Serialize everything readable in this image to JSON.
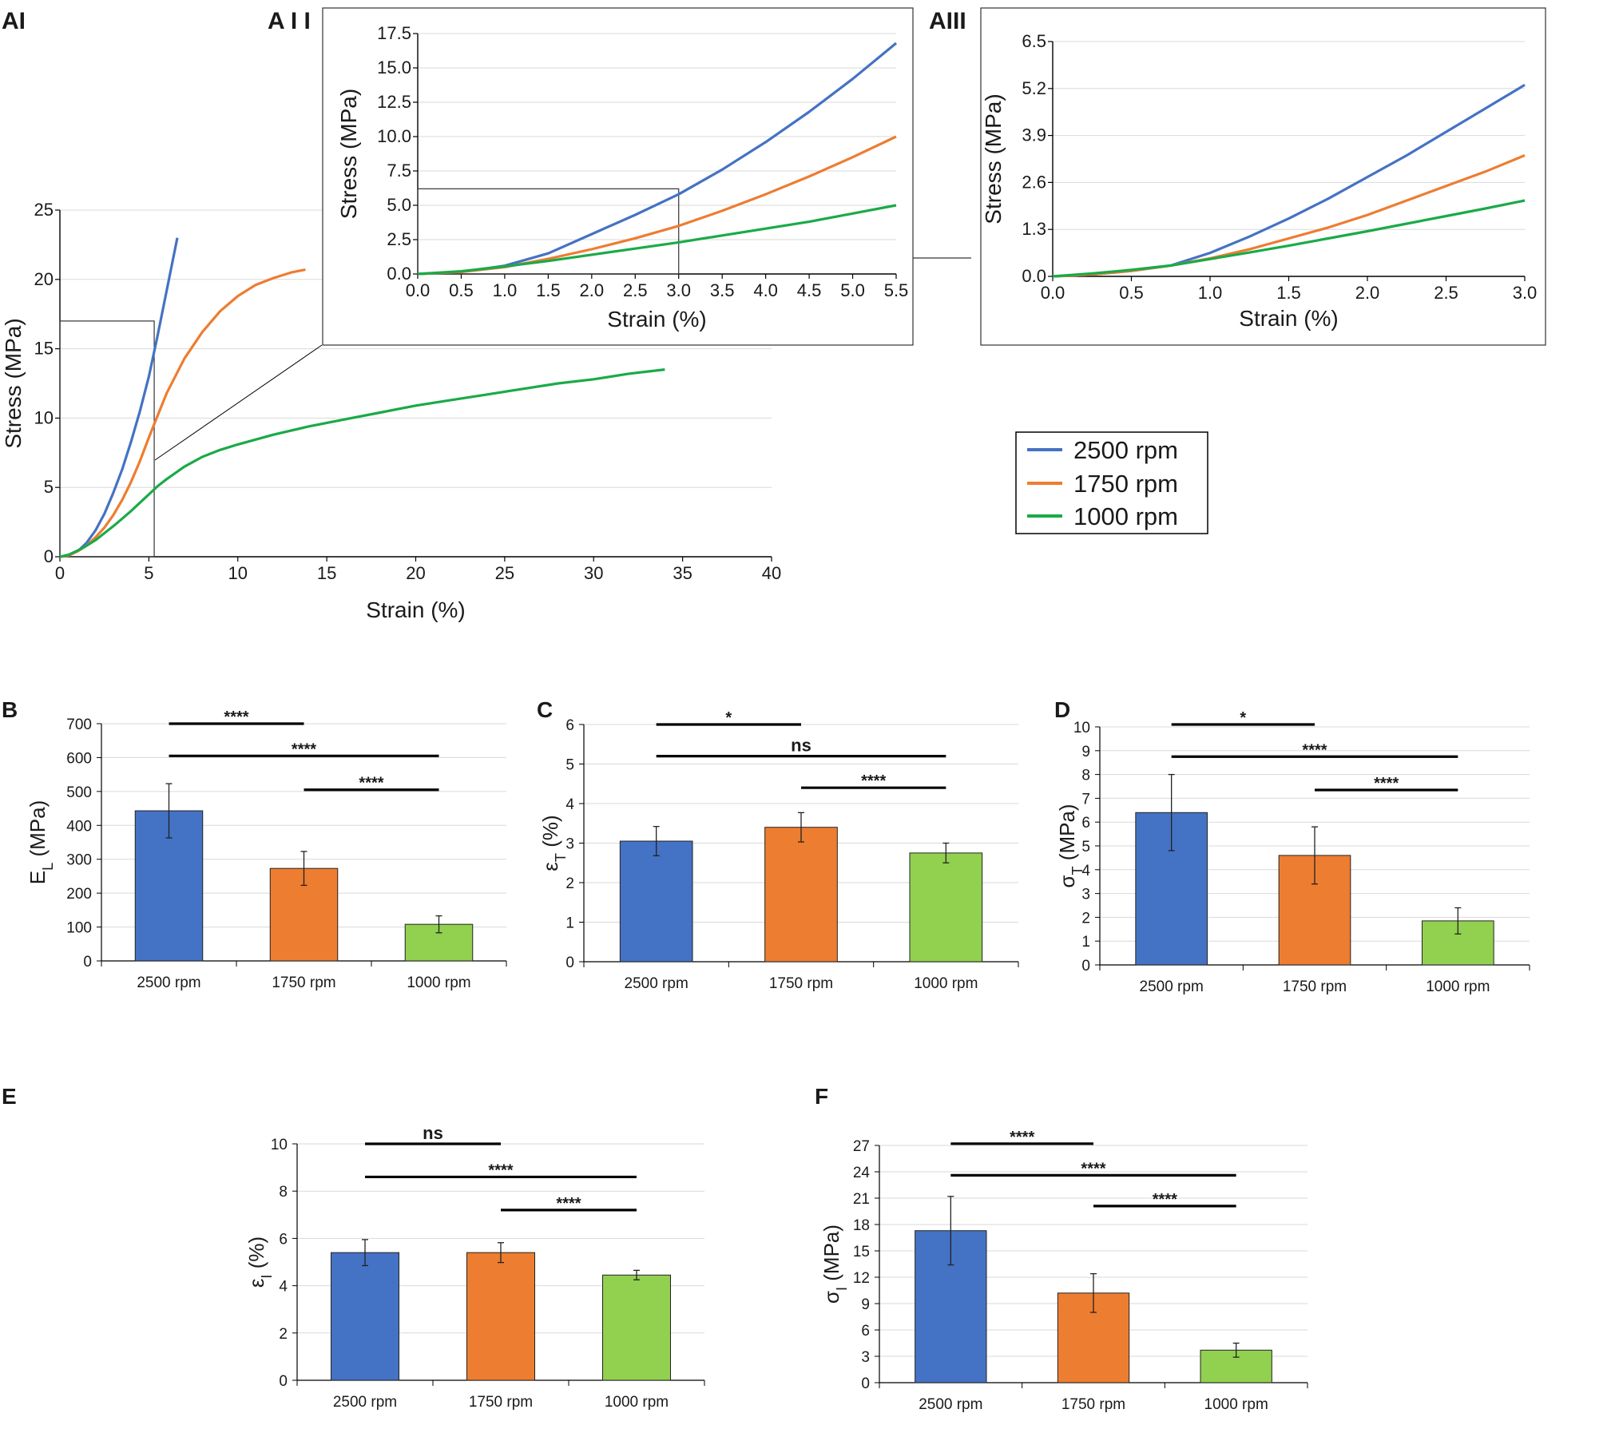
{
  "figure": {
    "panel_labels": {
      "AI": "AI",
      "AII": "A I I",
      "AIII": "AIII",
      "B": "B",
      "C": "C",
      "D": "D",
      "E": "E",
      "F": "F"
    }
  },
  "colors": {
    "blue": "#4472c4",
    "orange": "#ed7d31",
    "green_line": "#1aaa48",
    "green_bar": "#92d050",
    "axis": "#000000",
    "grid": "#d9d9d9"
  },
  "chart_data": [
    {
      "id": "AI",
      "type": "line",
      "xlabel": "Strain (%)",
      "ylabel": "Stress (MPa)",
      "xlim": [
        0,
        40
      ],
      "ylim": [
        0,
        25
      ],
      "xticks": [
        0,
        5,
        10,
        15,
        20,
        25,
        30,
        35,
        40
      ],
      "yticks": [
        0,
        5,
        10,
        15,
        20,
        25
      ],
      "inset_box": {
        "x": [
          0,
          5.3
        ],
        "y": [
          0,
          17
        ]
      },
      "series": [
        {
          "name": "2500 rpm",
          "color": "#4472c4",
          "x": [
            0,
            0.5,
            1,
            1.5,
            2,
            2.5,
            3,
            3.5,
            4,
            4.5,
            5,
            5.5,
            6,
            6.6
          ],
          "y": [
            0,
            0.1,
            0.4,
            1.0,
            1.9,
            3.1,
            4.6,
            6.3,
            8.3,
            10.5,
            13,
            16,
            19.2,
            23
          ]
        },
        {
          "name": "1750 rpm",
          "color": "#ed7d31",
          "x": [
            0,
            0.5,
            1,
            1.5,
            2,
            2.5,
            3,
            3.5,
            4,
            4.5,
            5,
            5.5,
            6,
            7,
            8,
            9,
            10,
            11,
            12,
            13,
            13.8
          ],
          "y": [
            0,
            0.1,
            0.4,
            0.8,
            1.4,
            2.1,
            3.0,
            4.1,
            5.4,
            6.9,
            8.6,
            10.2,
            11.8,
            14.3,
            16.2,
            17.7,
            18.8,
            19.6,
            20.1,
            20.5,
            20.7
          ]
        },
        {
          "name": "1000 rpm",
          "color": "#1aaa48",
          "x": [
            0,
            0.5,
            1,
            1.5,
            2,
            2.5,
            3,
            3.5,
            4,
            4.5,
            5,
            5.5,
            6,
            7,
            8,
            9,
            10,
            12,
            14,
            16,
            18,
            20,
            22,
            24,
            26,
            28,
            30,
            32,
            34
          ],
          "y": [
            0,
            0.15,
            0.45,
            0.8,
            1.2,
            1.7,
            2.2,
            2.75,
            3.3,
            3.9,
            4.5,
            5.1,
            5.6,
            6.5,
            7.2,
            7.7,
            8.1,
            8.8,
            9.4,
            9.9,
            10.4,
            10.9,
            11.3,
            11.7,
            12.1,
            12.5,
            12.8,
            13.2,
            13.5
          ]
        }
      ]
    },
    {
      "id": "AII",
      "type": "line",
      "xlabel": "Strain (%)",
      "ylabel": "Stress (MPa)",
      "xlim": [
        0,
        5.5
      ],
      "ylim": [
        0,
        17.5
      ],
      "xticks": [
        "0.0",
        "0.5",
        "1.0",
        "1.5",
        "2.0",
        "2.5",
        "3.0",
        "3.5",
        "4.0",
        "4.5",
        "5.0",
        "5.5"
      ],
      "yticks": [
        "0.0",
        "2.5",
        "5.0",
        "7.5",
        "10.0",
        "12.5",
        "15.0",
        "17.5"
      ],
      "inset_box": {
        "x": [
          0,
          3.0
        ],
        "y": [
          0,
          6.2
        ]
      },
      "series": [
        {
          "name": "2500 rpm",
          "color": "#4472c4",
          "x": [
            0,
            0.5,
            1,
            1.5,
            2,
            2.5,
            3,
            3.5,
            4,
            4.5,
            5,
            5.5
          ],
          "y": [
            0,
            0.15,
            0.6,
            1.5,
            2.9,
            4.3,
            5.8,
            7.6,
            9.6,
            11.8,
            14.2,
            16.8
          ]
        },
        {
          "name": "1750 rpm",
          "color": "#ed7d31",
          "x": [
            0,
            0.5,
            1,
            1.5,
            2,
            2.5,
            3,
            3.5,
            4,
            4.5,
            5,
            5.5
          ],
          "y": [
            0,
            0.15,
            0.5,
            1.1,
            1.8,
            2.6,
            3.5,
            4.6,
            5.8,
            7.1,
            8.5,
            10.0
          ]
        },
        {
          "name": "1000 rpm",
          "color": "#1aaa48",
          "x": [
            0,
            0.5,
            1,
            1.5,
            2,
            2.5,
            3,
            3.5,
            4,
            4.5,
            5,
            5.5
          ],
          "y": [
            0,
            0.2,
            0.55,
            0.95,
            1.4,
            1.85,
            2.3,
            2.8,
            3.3,
            3.8,
            4.4,
            5.0
          ]
        }
      ]
    },
    {
      "id": "AIII",
      "type": "line",
      "xlabel": "Strain (%)",
      "ylabel": "Stress (MPa)",
      "xlim": [
        0,
        3.0
      ],
      "ylim": [
        0,
        6.5
      ],
      "xticks": [
        "0.0",
        "0.5",
        "1.0",
        "1.5",
        "2.0",
        "2.5",
        "3.0"
      ],
      "yticks": [
        "0.0",
        "1.3",
        "2.6",
        "3.9",
        "5.2",
        "6.5"
      ],
      "series": [
        {
          "name": "2500 rpm",
          "color": "#4472c4",
          "x": [
            0,
            0.25,
            0.5,
            0.75,
            1.0,
            1.25,
            1.5,
            1.75,
            2.0,
            2.25,
            2.5,
            2.75,
            3.0
          ],
          "y": [
            0,
            0.05,
            0.15,
            0.3,
            0.65,
            1.1,
            1.6,
            2.15,
            2.75,
            3.35,
            4.0,
            4.65,
            5.3
          ]
        },
        {
          "name": "1750 rpm",
          "color": "#ed7d31",
          "x": [
            0,
            0.25,
            0.5,
            0.75,
            1.0,
            1.25,
            1.5,
            1.75,
            2.0,
            2.25,
            2.5,
            2.75,
            3.0
          ],
          "y": [
            0,
            0.05,
            0.15,
            0.3,
            0.5,
            0.75,
            1.05,
            1.35,
            1.7,
            2.1,
            2.5,
            2.9,
            3.35
          ]
        },
        {
          "name": "1000 rpm",
          "color": "#1aaa48",
          "x": [
            0,
            0.25,
            0.5,
            0.75,
            1.0,
            1.25,
            1.5,
            1.75,
            2.0,
            2.25,
            2.5,
            2.75,
            3.0
          ],
          "y": [
            0,
            0.08,
            0.18,
            0.3,
            0.48,
            0.66,
            0.85,
            1.05,
            1.25,
            1.46,
            1.67,
            1.88,
            2.1
          ]
        }
      ]
    },
    {
      "id": "B",
      "type": "bar",
      "ylabel": "E",
      "ylabel_sub": "L",
      "ylabel_unit": " (MPa)",
      "categories": [
        "2500 rpm",
        "1750 rpm",
        "1000 rpm"
      ],
      "values": [
        443,
        273,
        108
      ],
      "errors": [
        80,
        50,
        25
      ],
      "ylim": [
        0,
        700
      ],
      "yticks": [
        0,
        100,
        200,
        300,
        400,
        500,
        600,
        700
      ],
      "significance": [
        {
          "from": 0,
          "to": 1,
          "label": "****",
          "y": 700
        },
        {
          "from": 0,
          "to": 2,
          "label": "****",
          "y": 605
        },
        {
          "from": 1,
          "to": 2,
          "label": "****",
          "y": 505
        }
      ]
    },
    {
      "id": "C",
      "type": "bar",
      "ylabel": "ε",
      "ylabel_sub": "T",
      "ylabel_unit": " (%)",
      "categories": [
        "2500 rpm",
        "1750 rpm",
        "1000 rpm"
      ],
      "values": [
        3.05,
        3.4,
        2.75
      ],
      "errors": [
        0.37,
        0.37,
        0.25
      ],
      "ylim": [
        0,
        6
      ],
      "yticks": [
        0,
        1,
        2,
        3,
        4,
        5,
        6
      ],
      "significance": [
        {
          "from": 0,
          "to": 1,
          "label": "*",
          "y": 6.0
        },
        {
          "from": 0,
          "to": 2,
          "label": "ns",
          "y": 5.2
        },
        {
          "from": 1,
          "to": 2,
          "label": "****",
          "y": 4.4
        }
      ]
    },
    {
      "id": "D",
      "type": "bar",
      "ylabel": "σ",
      "ylabel_sub": "T",
      "ylabel_unit": " (MPa)",
      "categories": [
        "2500 rpm",
        "1750 rpm",
        "1000 rpm"
      ],
      "values": [
        6.4,
        4.6,
        1.85
      ],
      "errors": [
        1.6,
        1.2,
        0.55
      ],
      "ylim": [
        0,
        10
      ],
      "yticks": [
        0,
        1,
        2,
        3,
        4,
        5,
        6,
        7,
        8,
        9,
        10
      ],
      "significance": [
        {
          "from": 0,
          "to": 1,
          "label": "*",
          "y": 10.1
        },
        {
          "from": 0,
          "to": 2,
          "label": "****",
          "y": 8.75
        },
        {
          "from": 1,
          "to": 2,
          "label": "****",
          "y": 7.35
        }
      ]
    },
    {
      "id": "E",
      "type": "bar",
      "ylabel": "ε",
      "ylabel_sub": "I",
      "ylabel_unit": " (%)",
      "categories": [
        "2500 rpm",
        "1750 rpm",
        "1000 rpm"
      ],
      "values": [
        5.4,
        5.4,
        4.45
      ],
      "errors": [
        0.55,
        0.42,
        0.2
      ],
      "ylim": [
        0,
        10
      ],
      "yticks": [
        0,
        2,
        4,
        6,
        8,
        10
      ],
      "significance": [
        {
          "from": 0,
          "to": 1,
          "label": "ns",
          "y": 10.0
        },
        {
          "from": 0,
          "to": 2,
          "label": "****",
          "y": 8.6
        },
        {
          "from": 1,
          "to": 2,
          "label": "****",
          "y": 7.2
        }
      ]
    },
    {
      "id": "F",
      "type": "bar",
      "ylabel": "σ",
      "ylabel_sub": "I",
      "ylabel_unit": " (MPa)",
      "categories": [
        "2500 rpm",
        "1750 rpm",
        "1000 rpm"
      ],
      "values": [
        17.3,
        10.2,
        3.7
      ],
      "errors": [
        3.9,
        2.2,
        0.8
      ],
      "ylim": [
        0,
        27
      ],
      "yticks": [
        0,
        3,
        6,
        9,
        12,
        15,
        18,
        21,
        24,
        27
      ],
      "significance": [
        {
          "from": 0,
          "to": 1,
          "label": "****",
          "y": 27.2
        },
        {
          "from": 0,
          "to": 2,
          "label": "****",
          "y": 23.6
        },
        {
          "from": 1,
          "to": 2,
          "label": "****",
          "y": 20.1
        }
      ]
    }
  ],
  "legend": {
    "entries": [
      {
        "label": "2500 rpm",
        "color": "#4472c4"
      },
      {
        "label": "1750 rpm",
        "color": "#ed7d31"
      },
      {
        "label": "1000 rpm",
        "color": "#1aaa48"
      }
    ]
  }
}
